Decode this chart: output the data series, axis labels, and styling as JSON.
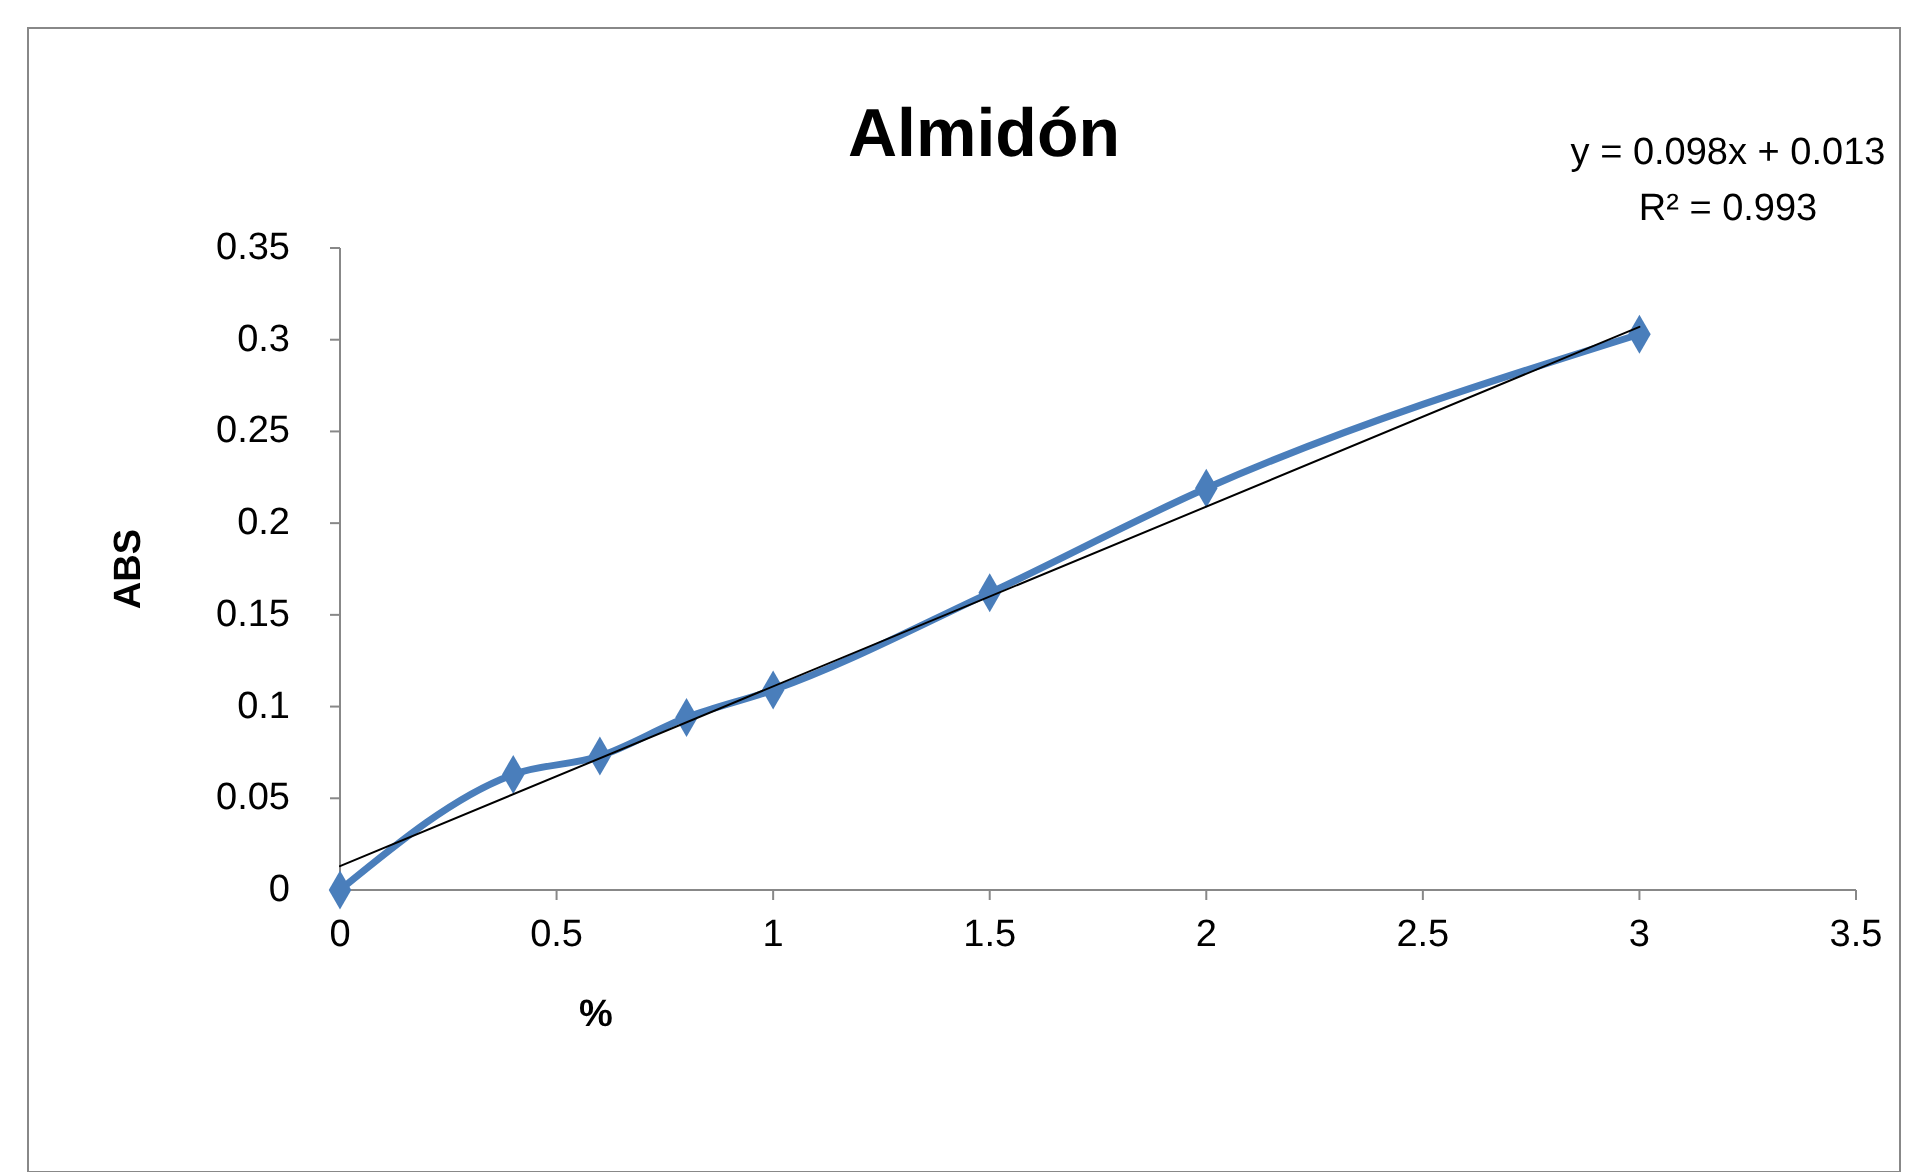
{
  "chart_data": {
    "type": "line",
    "title": "Almidón",
    "xlabel": "%",
    "ylabel": "ABS",
    "annotations": [
      "y = 0.098x + 0.013",
      "R² = 0.993"
    ],
    "xlim": [
      0,
      3.5
    ],
    "xticks": [
      0,
      0.5,
      1,
      1.5,
      2,
      2.5,
      3,
      3.5
    ],
    "ylim": [
      0,
      0.35
    ],
    "yticks": [
      0,
      0.05,
      0.1,
      0.15,
      0.2,
      0.25,
      0.3,
      0.35
    ],
    "grid": false,
    "series": [
      {
        "color": "#4a7ebb",
        "marker": "diamond",
        "x": [
          0,
          0.4,
          0.6,
          0.8,
          1,
          1.5,
          2,
          3
        ],
        "values": [
          0,
          0.063,
          0.073,
          0.094,
          0.109,
          0.162,
          0.219,
          0.303
        ]
      },
      {
        "color": "#000000",
        "marker": "none",
        "x": [
          0,
          3
        ],
        "values": [
          0.013,
          0.307
        ]
      }
    ]
  }
}
